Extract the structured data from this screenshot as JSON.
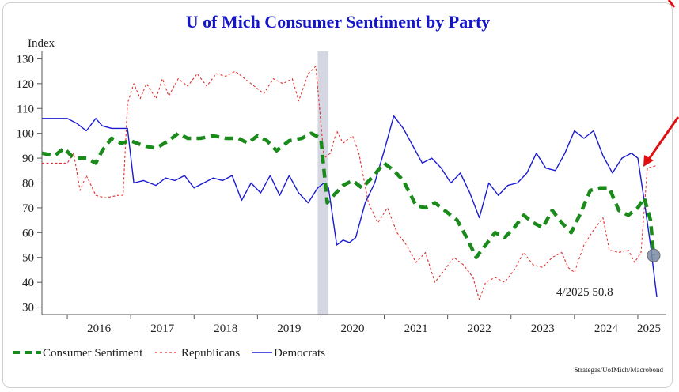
{
  "chart_data": {
    "type": "line",
    "title": "U of Mich Consumer Sentiment by Party",
    "ylabel": "Index",
    "xlabel": "",
    "ylim": [
      27,
      133
    ],
    "yticks": [
      30,
      40,
      50,
      60,
      70,
      80,
      90,
      100,
      110,
      120,
      130
    ],
    "xlim": [
      2015.6,
      2025.45
    ],
    "xtick_labels": [
      "2016",
      "2017",
      "2018",
      "2019",
      "2020",
      "2021",
      "2022",
      "2023",
      "2024",
      "2025"
    ],
    "grid": false,
    "legend_position": "bottom-left",
    "shaded_region": [
      2019.95,
      2020.12
    ],
    "annotation": {
      "text": "4/2025 50.8",
      "x": 2025.25,
      "y": 50.8
    },
    "source": "Strategas/UofMich/Macrobond",
    "series": [
      {
        "name": "Consumer Sentiment",
        "color": "#1a8a1a",
        "style": "dashed",
        "x": [
          2015.6,
          2015.8,
          2015.95,
          2016.1,
          2016.3,
          2016.45,
          2016.55,
          2016.7,
          2016.85,
          2017.0,
          2017.2,
          2017.4,
          2017.6,
          2017.75,
          2017.9,
          2018.1,
          2018.3,
          2018.5,
          2018.7,
          2018.85,
          2019.0,
          2019.15,
          2019.3,
          2019.5,
          2019.7,
          2019.85,
          2020.0,
          2020.1,
          2020.2,
          2020.35,
          2020.5,
          2020.65,
          2020.8,
          2021.0,
          2021.15,
          2021.3,
          2021.5,
          2021.65,
          2021.8,
          2022.0,
          2022.15,
          2022.3,
          2022.45,
          2022.6,
          2022.75,
          2022.9,
          2023.05,
          2023.2,
          2023.35,
          2023.5,
          2023.65,
          2023.8,
          2023.95,
          2024.1,
          2024.25,
          2024.4,
          2024.55,
          2024.7,
          2024.85,
          2025.0,
          2025.1,
          2025.2,
          2025.25
        ],
        "values": [
          92,
          91,
          94,
          90,
          90,
          88,
          93,
          98,
          96,
          97,
          95,
          94,
          97,
          100,
          98,
          98,
          99,
          98,
          98,
          96,
          99,
          97,
          93,
          97,
          98,
          100,
          98,
          72,
          75,
          79,
          81,
          78,
          82,
          88,
          85,
          81,
          71,
          70,
          72,
          68,
          65,
          58,
          50,
          55,
          60,
          58,
          62,
          67,
          64,
          62,
          69,
          64,
          60,
          68,
          77,
          78,
          78,
          69,
          67,
          70,
          74,
          65,
          50.8
        ]
      },
      {
        "name": "Republicans",
        "color": "#e03030",
        "style": "dotted",
        "x": [
          2015.6,
          2015.8,
          2016.0,
          2016.1,
          2016.2,
          2016.3,
          2016.45,
          2016.6,
          2016.8,
          2016.88,
          2016.95,
          2017.05,
          2017.15,
          2017.25,
          2017.4,
          2017.5,
          2017.6,
          2017.75,
          2017.9,
          2018.05,
          2018.2,
          2018.35,
          2018.5,
          2018.65,
          2018.8,
          2018.95,
          2019.1,
          2019.25,
          2019.4,
          2019.55,
          2019.65,
          2019.8,
          2019.92,
          2020.05,
          2020.15,
          2020.25,
          2020.35,
          2020.5,
          2020.6,
          2020.75,
          2020.9,
          2021.05,
          2021.2,
          2021.35,
          2021.5,
          2021.65,
          2021.8,
          2021.95,
          2022.1,
          2022.25,
          2022.4,
          2022.5,
          2022.6,
          2022.75,
          2022.9,
          2023.05,
          2023.2,
          2023.35,
          2023.5,
          2023.65,
          2023.8,
          2023.9,
          2024.0,
          2024.15,
          2024.3,
          2024.45,
          2024.55,
          2024.7,
          2024.85,
          2024.95,
          2025.05,
          2025.15,
          2025.3
        ],
        "values": [
          88,
          88,
          88,
          92,
          77,
          83,
          75,
          74,
          75,
          75,
          112,
          120,
          114,
          120,
          114,
          122,
          115,
          122,
          119,
          124,
          119,
          124,
          123,
          125,
          122,
          119,
          116,
          122,
          120,
          122,
          113,
          124,
          127,
          90,
          92,
          101,
          96,
          99,
          92,
          72,
          64,
          70,
          60,
          55,
          48,
          52,
          40,
          45,
          50,
          47,
          42,
          33,
          40,
          42,
          40,
          45,
          52,
          47,
          46,
          50,
          52,
          46,
          44,
          55,
          61,
          66,
          53,
          52,
          53,
          48,
          52,
          86,
          87
        ]
      },
      {
        "name": "Democrats",
        "color": "#1a1ad2",
        "style": "solid",
        "x": [
          2015.6,
          2015.8,
          2016.0,
          2016.15,
          2016.3,
          2016.45,
          2016.55,
          2016.7,
          2016.85,
          2016.95,
          2017.05,
          2017.2,
          2017.4,
          2017.55,
          2017.7,
          2017.85,
          2018.0,
          2018.15,
          2018.3,
          2018.45,
          2018.6,
          2018.75,
          2018.9,
          2019.05,
          2019.2,
          2019.35,
          2019.5,
          2019.65,
          2019.8,
          2019.95,
          2020.05,
          2020.12,
          2020.25,
          2020.35,
          2020.45,
          2020.55,
          2020.7,
          2020.85,
          2021.0,
          2021.15,
          2021.3,
          2021.45,
          2021.6,
          2021.75,
          2021.9,
          2022.05,
          2022.2,
          2022.35,
          2022.5,
          2022.65,
          2022.8,
          2022.95,
          2023.1,
          2023.25,
          2023.4,
          2023.55,
          2023.7,
          2023.85,
          2024.0,
          2024.15,
          2024.3,
          2024.45,
          2024.6,
          2024.75,
          2024.9,
          2025.0,
          2025.1,
          2025.2,
          2025.3
        ],
        "values": [
          106,
          106,
          106,
          104,
          101,
          106,
          103,
          102,
          102,
          102,
          80,
          81,
          79,
          82,
          81,
          83,
          78,
          80,
          82,
          81,
          83,
          73,
          80,
          76,
          83,
          75,
          83,
          76,
          72,
          78,
          80,
          78,
          55,
          57,
          56,
          58,
          72,
          80,
          93,
          107,
          102,
          95,
          88,
          90,
          86,
          80,
          84,
          76,
          66,
          80,
          75,
          79,
          80,
          84,
          92,
          86,
          85,
          92,
          101,
          98,
          101,
          91,
          84,
          90,
          92,
          90,
          73,
          55,
          34
        ]
      }
    ]
  }
}
